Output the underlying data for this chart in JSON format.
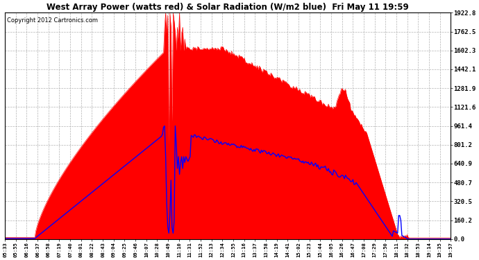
{
  "title": "West Array Power (watts red) & Solar Radiation (W/m2 blue)  Fri May 11 19:59",
  "copyright": "Copyright 2012 Cartronics.com",
  "ymax": 1922.8,
  "yticks": [
    0.0,
    160.2,
    320.5,
    480.7,
    640.9,
    801.2,
    961.4,
    1121.6,
    1281.9,
    1442.1,
    1602.3,
    1762.5,
    1922.8
  ],
  "bg_color": "#ffffff",
  "grid_color": "#aaaaaa",
  "red_color": "#ff0000",
  "blue_color": "#0000ff",
  "x_labels": [
    "05:33",
    "05:55",
    "06:16",
    "06:37",
    "06:58",
    "07:19",
    "07:40",
    "08:01",
    "08:22",
    "08:43",
    "09:04",
    "09:25",
    "09:46",
    "10:07",
    "10:28",
    "10:49",
    "11:10",
    "11:31",
    "11:52",
    "12:13",
    "12:34",
    "12:55",
    "13:16",
    "13:37",
    "13:58",
    "14:19",
    "14:41",
    "15:02",
    "15:23",
    "15:44",
    "16:05",
    "16:26",
    "16:47",
    "17:08",
    "17:29",
    "17:50",
    "18:11",
    "18:32",
    "18:53",
    "19:14",
    "19:35",
    "19:57"
  ],
  "n_points": 420
}
